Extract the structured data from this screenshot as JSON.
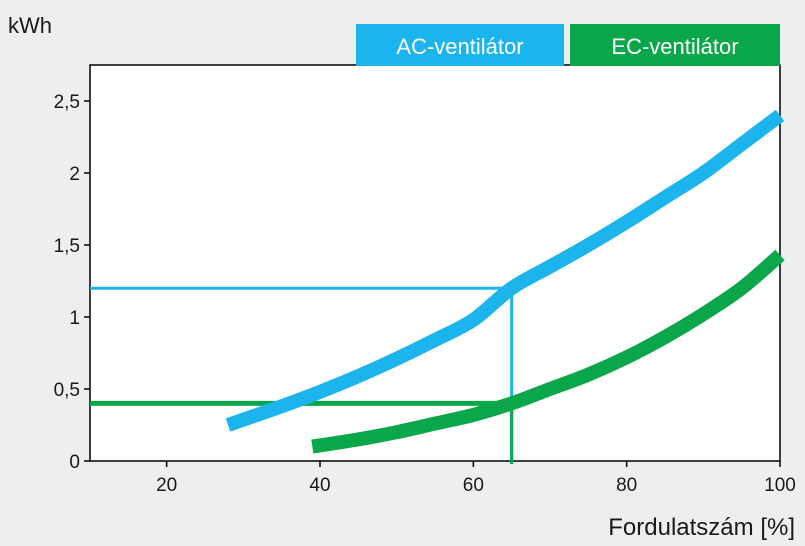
{
  "chart_data": {
    "type": "line",
    "ylabel": "kWh",
    "xlabel": "Fordulatszám [%]",
    "xlim": [
      10,
      100
    ],
    "ylim": [
      0,
      2.75
    ],
    "xticks": [
      "20",
      "40",
      "60",
      "80",
      "100"
    ],
    "yticks": [
      "0",
      "0,5",
      "1",
      "1,5",
      "2",
      "2,5"
    ],
    "legend_position": "top-right",
    "series": [
      {
        "name": "AC-ventilátor",
        "color": "#1cb4ec",
        "x": [
          28,
          35,
          40,
          45,
          50,
          55,
          60,
          65,
          70,
          75,
          80,
          85,
          90,
          95,
          100
        ],
        "y": [
          0.25,
          0.38,
          0.48,
          0.59,
          0.71,
          0.84,
          0.98,
          1.2,
          1.35,
          1.5,
          1.66,
          1.83,
          2.0,
          2.2,
          2.4
        ]
      },
      {
        "name": "EC-ventilátor",
        "color": "#0aa64a",
        "x": [
          39,
          45,
          50,
          55,
          60,
          65,
          70,
          75,
          80,
          85,
          90,
          95,
          100
        ],
        "y": [
          0.1,
          0.15,
          0.2,
          0.26,
          0.32,
          0.4,
          0.5,
          0.6,
          0.72,
          0.86,
          1.02,
          1.2,
          1.43
        ]
      }
    ],
    "annotations": [
      {
        "x": 65,
        "y": 1.2,
        "color": "#1cb4ec"
      },
      {
        "x": 65,
        "y": 0.4,
        "color": "#0aa64a"
      }
    ]
  }
}
